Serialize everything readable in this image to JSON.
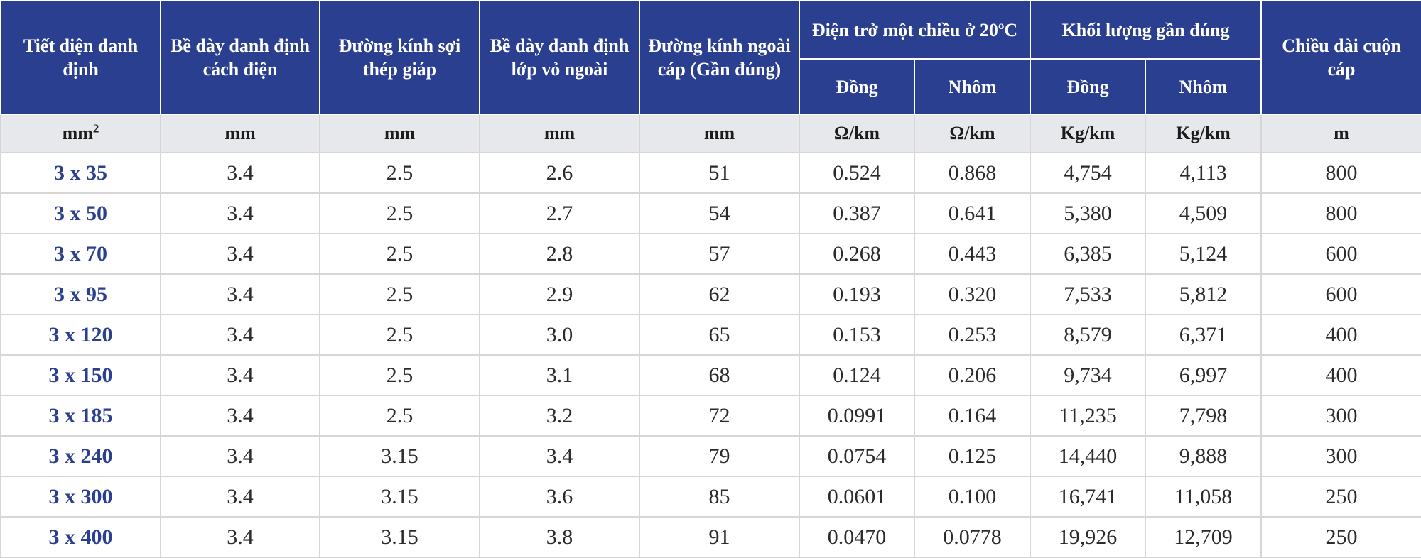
{
  "colors": {
    "header_bg": "#2a3f8f",
    "units_bg": "#e7e8eb",
    "section_text": "#2a3f8f",
    "grid": "#d6d6d6"
  },
  "headers": {
    "section": "Tiết diện danh định",
    "insulation": "Bề dày danh định cách điện",
    "armour_wire": "Đường kính sợi thép giáp",
    "sheath": "Bề dày danh định lớp vỏ ngoài",
    "outer_diameter": "Đường kính ngoài cáp (Gần đúng)",
    "resistance_group": "Điện trở một chiều ở 20ºC",
    "weight_group": "Khối lượng gần đúng",
    "length": "Chiều dài cuộn cáp",
    "copper": "Đồng",
    "aluminium": "Nhôm"
  },
  "units": {
    "section_base": "mm",
    "section_sup": "2",
    "insulation": "mm",
    "armour_wire": "mm",
    "sheath": "mm",
    "outer_diameter": "mm",
    "res_cu": "Ω/km",
    "res_al": "Ω/km",
    "wt_cu": "Kg/km",
    "wt_al": "Kg/km",
    "length": "m"
  },
  "rows": [
    {
      "section": "3 x 35",
      "insulation": "3.4",
      "armour_wire": "2.5",
      "sheath": "2.6",
      "outer_diameter": "51",
      "res_cu": "0.524",
      "res_al": "0.868",
      "wt_cu": "4,754",
      "wt_al": "4,113",
      "length": "800"
    },
    {
      "section": "3 x 50",
      "insulation": "3.4",
      "armour_wire": "2.5",
      "sheath": "2.7",
      "outer_diameter": "54",
      "res_cu": "0.387",
      "res_al": "0.641",
      "wt_cu": "5,380",
      "wt_al": "4,509",
      "length": "800"
    },
    {
      "section": "3 x 70",
      "insulation": "3.4",
      "armour_wire": "2.5",
      "sheath": "2.8",
      "outer_diameter": "57",
      "res_cu": "0.268",
      "res_al": "0.443",
      "wt_cu": "6,385",
      "wt_al": "5,124",
      "length": "600"
    },
    {
      "section": "3 x 95",
      "insulation": "3.4",
      "armour_wire": "2.5",
      "sheath": "2.9",
      "outer_diameter": "62",
      "res_cu": "0.193",
      "res_al": "0.320",
      "wt_cu": "7,533",
      "wt_al": "5,812",
      "length": "600"
    },
    {
      "section": "3 x 120",
      "insulation": "3.4",
      "armour_wire": "2.5",
      "sheath": "3.0",
      "outer_diameter": "65",
      "res_cu": "0.153",
      "res_al": "0.253",
      "wt_cu": "8,579",
      "wt_al": "6,371",
      "length": "400"
    },
    {
      "section": "3 x 150",
      "insulation": "3.4",
      "armour_wire": "2.5",
      "sheath": "3.1",
      "outer_diameter": "68",
      "res_cu": "0.124",
      "res_al": "0.206",
      "wt_cu": "9,734",
      "wt_al": "6,997",
      "length": "400"
    },
    {
      "section": "3 x 185",
      "insulation": "3.4",
      "armour_wire": "2.5",
      "sheath": "3.2",
      "outer_diameter": "72",
      "res_cu": "0.0991",
      "res_al": "0.164",
      "wt_cu": "11,235",
      "wt_al": "7,798",
      "length": "300"
    },
    {
      "section": "3 x 240",
      "insulation": "3.4",
      "armour_wire": "3.15",
      "sheath": "3.4",
      "outer_diameter": "79",
      "res_cu": "0.0754",
      "res_al": "0.125",
      "wt_cu": "14,440",
      "wt_al": "9,888",
      "length": "300"
    },
    {
      "section": "3 x 300",
      "insulation": "3.4",
      "armour_wire": "3.15",
      "sheath": "3.6",
      "outer_diameter": "85",
      "res_cu": "0.0601",
      "res_al": "0.100",
      "wt_cu": "16,741",
      "wt_al": "11,058",
      "length": "250"
    },
    {
      "section": "3 x 400",
      "insulation": "3.4",
      "armour_wire": "3.15",
      "sheath": "3.8",
      "outer_diameter": "91",
      "res_cu": "0.0470",
      "res_al": "0.0778",
      "wt_cu": "19,926",
      "wt_al": "12,709",
      "length": "250"
    }
  ]
}
